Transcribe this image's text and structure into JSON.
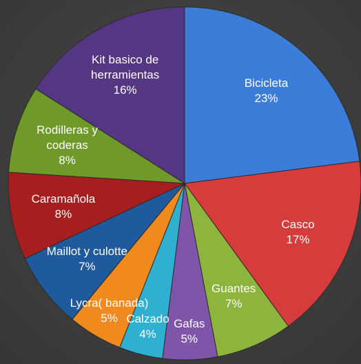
{
  "chart_data": {
    "type": "pie",
    "categories": [
      "Bicicleta",
      "Casco",
      "Guantes",
      "Gafas",
      "Calzado",
      "Lycra( banada)",
      "Maillot y culotte",
      "Caramañola",
      "Rodilleras y coderas",
      "Kit basico de herramientas"
    ],
    "values": [
      23,
      17,
      7,
      5,
      4,
      5,
      7,
      8,
      8,
      16
    ],
    "value_labels": [
      "23%",
      "17%",
      "7%",
      "5%",
      "4%",
      "5%",
      "7%",
      "8%",
      "8%",
      "16%"
    ],
    "colors": [
      "#3b7dd8",
      "#d63c3c",
      "#8db43c",
      "#7e55a8",
      "#2fb0d0",
      "#f08a1e",
      "#1f5a9c",
      "#a61e1e",
      "#6f9a2a",
      "#553682"
    ]
  }
}
